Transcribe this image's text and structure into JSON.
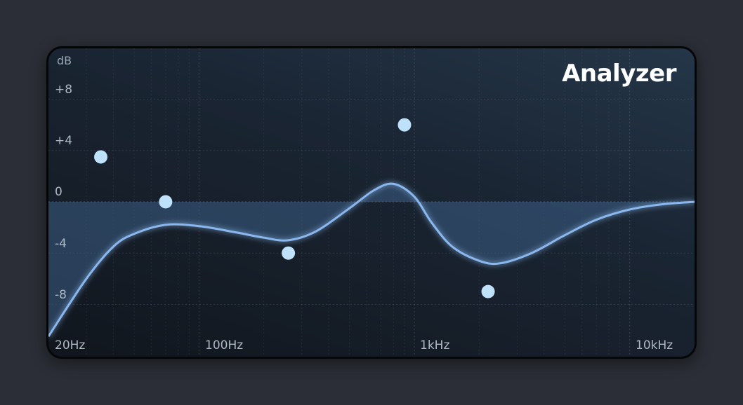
{
  "analyzer": {
    "title": "Analyzer",
    "unit": "dB",
    "db_labels": [
      "+8",
      "+4",
      "0",
      "-4",
      "-8"
    ],
    "freq_labels": [
      "20Hz",
      "100Hz",
      "1kHz",
      "10kHz"
    ],
    "colors": {
      "curve": "#8ab8ee",
      "fill": "#3d5f86",
      "point": "#bfe2fb",
      "grid": "#8a98aa"
    },
    "bands": [
      {
        "name": "band-1",
        "freq_hz": 35,
        "gain_db": 3.5
      },
      {
        "name": "band-2",
        "freq_hz": 70,
        "gain_db": 0
      },
      {
        "name": "band-3",
        "freq_hz": 260,
        "gain_db": -4
      },
      {
        "name": "band-4",
        "freq_hz": 900,
        "gain_db": 6
      },
      {
        "name": "band-5",
        "freq_hz": 2200,
        "gain_db": -7
      }
    ],
    "response": [
      {
        "freq_hz": 20,
        "gain_db": -10.5
      },
      {
        "freq_hz": 30,
        "gain_db": -6
      },
      {
        "freq_hz": 40,
        "gain_db": -3.5
      },
      {
        "freq_hz": 50,
        "gain_db": -2.5
      },
      {
        "freq_hz": 70,
        "gain_db": -1.8
      },
      {
        "freq_hz": 100,
        "gain_db": -1.9
      },
      {
        "freq_hz": 150,
        "gain_db": -2.4
      },
      {
        "freq_hz": 200,
        "gain_db": -2.8
      },
      {
        "freq_hz": 260,
        "gain_db": -3
      },
      {
        "freq_hz": 350,
        "gain_db": -2.3
      },
      {
        "freq_hz": 500,
        "gain_db": -0.5
      },
      {
        "freq_hz": 650,
        "gain_db": 0.9
      },
      {
        "freq_hz": 800,
        "gain_db": 1.4
      },
      {
        "freq_hz": 1000,
        "gain_db": 0.4
      },
      {
        "freq_hz": 1200,
        "gain_db": -1.6
      },
      {
        "freq_hz": 1500,
        "gain_db": -3.5
      },
      {
        "freq_hz": 2000,
        "gain_db": -4.6
      },
      {
        "freq_hz": 2500,
        "gain_db": -4.8
      },
      {
        "freq_hz": 3500,
        "gain_db": -4
      },
      {
        "freq_hz": 5000,
        "gain_db": -2.6
      },
      {
        "freq_hz": 7000,
        "gain_db": -1.4
      },
      {
        "freq_hz": 10000,
        "gain_db": -0.6
      },
      {
        "freq_hz": 14000,
        "gain_db": -0.2
      },
      {
        "freq_hz": 20000,
        "gain_db": 0
      }
    ],
    "freq_range": [
      20,
      20000
    ],
    "db_range": [
      -12,
      12
    ]
  }
}
